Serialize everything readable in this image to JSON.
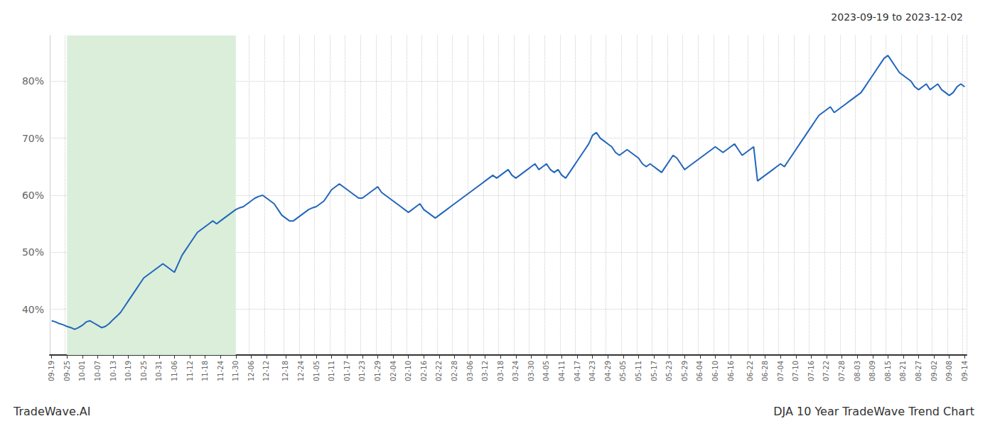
{
  "chart_data": {
    "type": "line",
    "title": "2023-09-19 to 2023-12-02",
    "annotations": [
      "TradeWave.AI",
      "DJA 10 Year TradeWave Trend Chart"
    ],
    "color": "#2266bb",
    "grid": true,
    "ylim": [
      32,
      88
    ],
    "yticks": [
      {
        "value": 40,
        "label": "40%"
      },
      {
        "value": 50,
        "label": "50%"
      },
      {
        "value": 60,
        "label": "60%"
      },
      {
        "value": 70,
        "label": "70%"
      },
      {
        "value": 80,
        "label": "80%"
      }
    ],
    "shade": {
      "start": "09-25",
      "end": "11-30",
      "color": "#daeeda"
    },
    "categories": [
      "09-19",
      null,
      null,
      null,
      "09-25",
      null,
      null,
      null,
      "10-01",
      null,
      null,
      null,
      "10-07",
      null,
      null,
      null,
      "10-13",
      null,
      null,
      null,
      "10-19",
      null,
      null,
      null,
      "10-25",
      null,
      null,
      null,
      "10-31",
      null,
      null,
      null,
      "11-06",
      null,
      null,
      null,
      "11-12",
      null,
      null,
      null,
      "11-18",
      null,
      null,
      null,
      "11-24",
      null,
      null,
      null,
      "11-30",
      null,
      null,
      null,
      "12-06",
      null,
      null,
      null,
      "12-12",
      null,
      null,
      null,
      null,
      "12-18",
      null,
      null,
      null,
      "12-24",
      null,
      null,
      null,
      "01-05",
      null,
      null,
      null,
      "01-11",
      null,
      null,
      null,
      "01-17",
      null,
      null,
      null,
      "01-23",
      null,
      null,
      null,
      "01-29",
      null,
      null,
      null,
      "02-04",
      null,
      null,
      null,
      "02-10",
      null,
      null,
      null,
      "02-16",
      null,
      null,
      null,
      "02-22",
      null,
      null,
      null,
      "02-28",
      null,
      null,
      null,
      "03-06",
      null,
      null,
      null,
      "03-12",
      null,
      null,
      null,
      "03-18",
      null,
      null,
      null,
      "03-24",
      null,
      null,
      null,
      "03-30",
      null,
      null,
      null,
      "04-05",
      null,
      null,
      null,
      "04-11",
      null,
      null,
      null,
      "04-17",
      null,
      null,
      null,
      "04-23",
      null,
      null,
      null,
      "04-29",
      null,
      null,
      null,
      "05-05",
      null,
      null,
      null,
      "05-11",
      null,
      null,
      null,
      "05-17",
      null,
      null,
      null,
      "05-23",
      null,
      null,
      null,
      "05-29",
      null,
      null,
      null,
      "06-04",
      null,
      null,
      null,
      "06-10",
      null,
      null,
      null,
      "06-16",
      null,
      null,
      null,
      null,
      "06-22",
      null,
      null,
      null,
      "06-28",
      null,
      null,
      null,
      "07-04",
      null,
      null,
      null,
      "07-10",
      null,
      null,
      null,
      "07-16",
      null,
      null,
      null,
      "07-22",
      null,
      null,
      null,
      "07-28",
      null,
      null,
      null,
      "08-03",
      null,
      null,
      null,
      "08-09",
      null,
      null,
      null,
      "08-15",
      null,
      null,
      null,
      "08-21",
      null,
      null,
      null,
      "08-27",
      null,
      null,
      null,
      "09-02",
      null,
      null,
      null,
      "09-08",
      null,
      null,
      null,
      "09-14"
    ],
    "values": [
      38.0,
      37.8,
      37.5,
      37.3,
      37.0,
      36.8,
      36.5,
      36.8,
      37.2,
      37.8,
      38.0,
      37.6,
      37.2,
      36.8,
      37.0,
      37.5,
      38.2,
      38.8,
      39.5,
      40.5,
      41.5,
      42.5,
      43.5,
      44.5,
      45.5,
      46.0,
      46.5,
      47.0,
      47.5,
      48.0,
      47.5,
      47.0,
      46.5,
      48.0,
      49.5,
      50.5,
      51.5,
      52.5,
      53.5,
      54.0,
      54.5,
      55.0,
      55.5,
      55.0,
      55.5,
      56.0,
      56.5,
      57.0,
      57.5,
      57.8,
      58.0,
      58.5,
      59.0,
      59.5,
      59.8,
      60.0,
      59.5,
      59.0,
      58.5,
      57.5,
      56.5,
      56.0,
      55.5,
      55.5,
      56.0,
      56.5,
      57.0,
      57.5,
      57.8,
      58.0,
      58.5,
      59.0,
      60.0,
      61.0,
      61.5,
      62.0,
      61.5,
      61.0,
      60.5,
      60.0,
      59.5,
      59.5,
      60.0,
      60.5,
      61.0,
      61.5,
      60.5,
      60.0,
      59.5,
      59.0,
      58.5,
      58.0,
      57.5,
      57.0,
      57.5,
      58.0,
      58.5,
      57.5,
      57.0,
      56.5,
      56.0,
      56.5,
      57.0,
      57.5,
      58.0,
      58.5,
      59.0,
      59.5,
      60.0,
      60.5,
      61.0,
      61.5,
      62.0,
      62.5,
      63.0,
      63.5,
      63.0,
      63.5,
      64.0,
      64.5,
      63.5,
      63.0,
      63.5,
      64.0,
      64.5,
      65.0,
      65.5,
      64.5,
      65.0,
      65.5,
      64.5,
      64.0,
      64.5,
      63.5,
      63.0,
      64.0,
      65.0,
      66.0,
      67.0,
      68.0,
      69.0,
      70.5,
      71.0,
      70.0,
      69.5,
      69.0,
      68.5,
      67.5,
      67.0,
      67.5,
      68.0,
      67.5,
      67.0,
      66.5,
      65.5,
      65.0,
      65.5,
      65.0,
      64.5,
      64.0,
      65.0,
      66.0,
      67.0,
      66.5,
      65.5,
      64.5,
      65.0,
      65.5,
      66.0,
      66.5,
      67.0,
      67.5,
      68.0,
      68.5,
      68.0,
      67.5,
      68.0,
      68.5,
      69.0,
      68.0,
      67.0,
      67.5,
      68.0,
      68.5,
      62.5,
      63.0,
      63.5,
      64.0,
      64.5,
      65.0,
      65.5,
      65.0,
      66.0,
      67.0,
      68.0,
      69.0,
      70.0,
      71.0,
      72.0,
      73.0,
      74.0,
      74.5,
      75.0,
      75.5,
      74.5,
      75.0,
      75.5,
      76.0,
      76.5,
      77.0,
      77.5,
      78.0,
      79.0,
      80.0,
      81.0,
      82.0,
      83.0,
      84.0,
      84.5,
      83.5,
      82.5,
      81.5,
      81.0,
      80.5,
      80.0,
      79.0,
      78.5,
      79.0,
      79.5,
      78.5,
      79.0,
      79.5,
      78.5,
      78.0,
      77.5,
      78.0,
      79.0,
      79.5,
      79.0
    ]
  }
}
